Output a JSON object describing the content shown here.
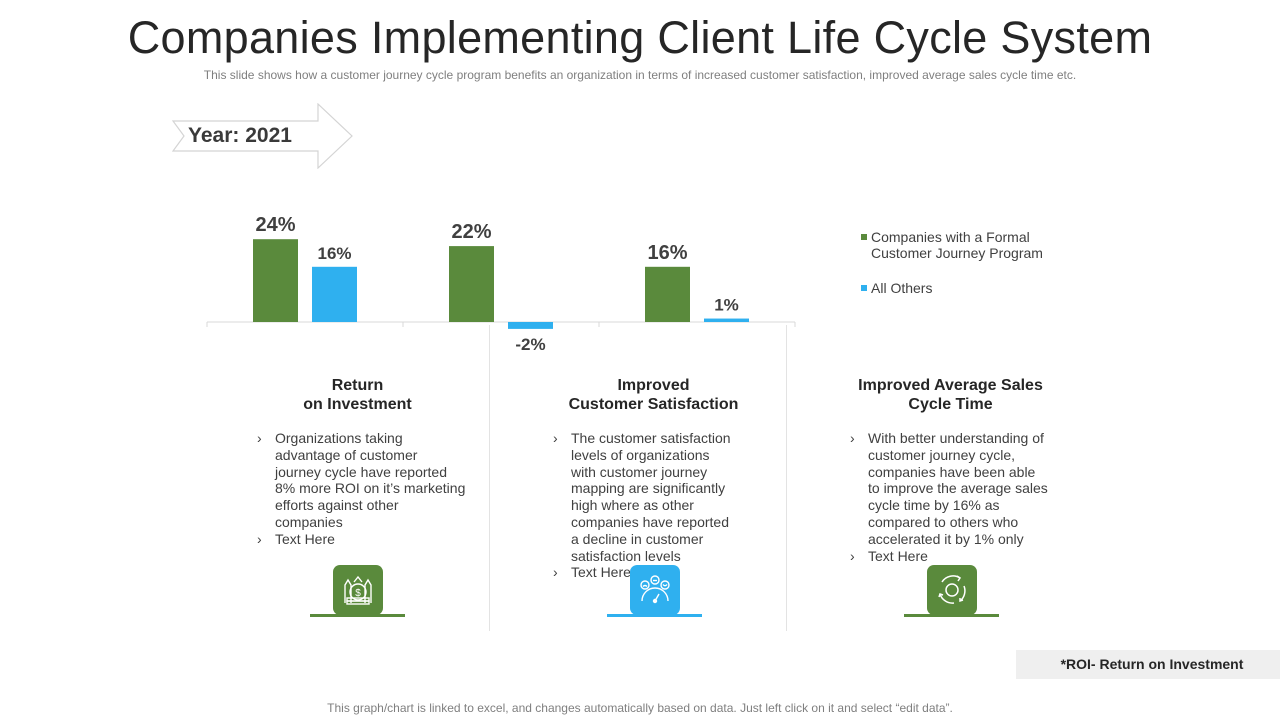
{
  "header": {
    "title": "Companies Implementing Client Life Cycle System",
    "subtitle": "This slide shows how a customer journey  cycle program  benefits  an organization  in terms of increased customer satisfaction, improved  average  sales cycle time etc."
  },
  "year_label": "Year: 2021",
  "chart_data": {
    "type": "bar",
    "categories": [
      "Return on Investment",
      "Improved Customer Satisfaction",
      "Improved Average Sales Cycle Time"
    ],
    "series": [
      {
        "name": "Companies with a Formal Customer Journey Program",
        "values": [
          24,
          22,
          16
        ],
        "labels": [
          "24%",
          "22%",
          "16%"
        ],
        "color": "#5a8a3c"
      },
      {
        "name": "All Others",
        "values": [
          16,
          -2,
          1
        ],
        "labels": [
          "16%",
          "-2%",
          "1%"
        ],
        "color": "#2fb0ef"
      }
    ],
    "unit": "%",
    "legend_position": "right"
  },
  "legend": [
    {
      "line1": "Companies with a Formal",
      "line2": "Customer Journey Program",
      "color": "#5a8a3c"
    },
    {
      "line1": "All Others",
      "line2": "",
      "color": "#2fb0ef"
    }
  ],
  "columns": [
    {
      "title_line1": "Return",
      "title_line2": "on Investment",
      "bullets": [
        "Organizations taking advantage of customer journey cycle have reported 8% more ROI on it’s marketing efforts against other companies",
        "Text Here"
      ],
      "icon": "money-bag-icon",
      "icon_color": "#5a8a3c"
    },
    {
      "title_line1": "Improved",
      "title_line2": "Customer Satisfaction",
      "bullets": [
        "The customer satisfaction levels of organizations with customer journey mapping are significantly high where as other companies have reported a decline in customer satisfaction levels",
        "Text Here"
      ],
      "icon": "satisfaction-gauge-icon",
      "icon_color": "#2fb0ef"
    },
    {
      "title_line1": "Improved Average Sales",
      "title_line2": "Cycle Time",
      "bullets": [
        "With better understanding of customer journey cycle, companies have been able to improve the average sales cycle time by 16% as compared to others who accelerated it by 1% only",
        "Text Here"
      ],
      "icon": "cycle-arrows-icon",
      "icon_color": "#5a8a3c"
    }
  ],
  "footnote": "*ROI- Return on Investment",
  "footer": "This graph/chart is linked to excel, and changes automatically based on data. Just left click on it and select “edit data”."
}
